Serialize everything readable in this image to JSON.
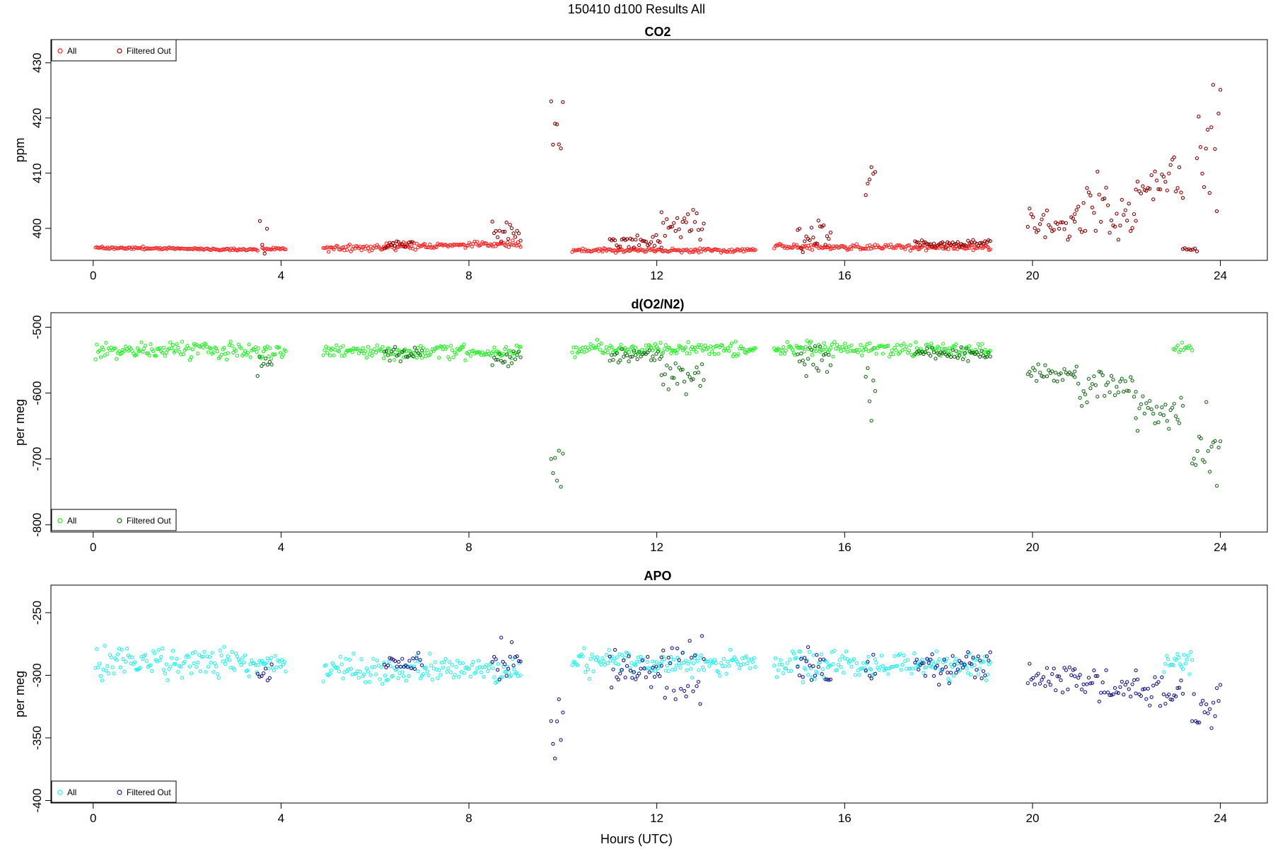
{
  "figure": {
    "title": "150410   d100   Results All",
    "xlabel": "Hours (UTC)"
  },
  "chart_data": [
    {
      "type": "scatter",
      "title": "CO2",
      "ylabel": "ppm",
      "xlim": [
        -0.9,
        25.0
      ],
      "ylim": [
        394.2,
        434.2
      ],
      "xticks": [
        0,
        4,
        8,
        12,
        16,
        20,
        24
      ],
      "yticks": [
        400,
        410,
        420,
        430
      ],
      "legend": {
        "position": "top-left",
        "entries": [
          "All",
          "Filtered Out"
        ]
      },
      "colors": {
        "all": "#ff2020",
        "filtered": "#8b0000"
      },
      "series": [
        {
          "name": "All",
          "segments": [
            {
              "x0": 0.05,
              "x1": 3.5,
              "base": 396.5,
              "slope": -0.1,
              "noise": 0.2
            },
            {
              "x0": 3.6,
              "x1": 4.1,
              "base": 396.3,
              "slope": 0,
              "noise": 0.2
            },
            {
              "x0": 4.9,
              "x1": 9.1,
              "base": 396.4,
              "slope": 0.2,
              "noise": 0.5
            },
            {
              "x0": 10.2,
              "x1": 14.1,
              "base": 396.0,
              "slope": 0,
              "noise": 0.3
            },
            {
              "x0": 14.5,
              "x1": 19.1,
              "base": 396.6,
              "slope": 0,
              "noise": 0.4
            }
          ]
        },
        {
          "name": "Filtered Out",
          "segments": [
            {
              "x0": 3.55,
              "x1": 3.7,
              "base": 400,
              "slope": 0,
              "noise": 3.5
            },
            {
              "x0": 6.2,
              "x1": 6.8,
              "base": 397.2,
              "slope": 0,
              "noise": 1.0
            },
            {
              "x0": 8.5,
              "x1": 9.1,
              "base": 398.8,
              "slope": 0,
              "noise": 1.6
            },
            {
              "x0": 9.75,
              "x1": 10.0,
              "base": 418,
              "slope": 0,
              "noise": 8
            },
            {
              "x0": 11.0,
              "x1": 12.1,
              "base": 397.5,
              "slope": 0,
              "noise": 1.0
            },
            {
              "x0": 12.1,
              "x1": 13.0,
              "base": 401.5,
              "slope": 0,
              "noise": 2.8
            },
            {
              "x0": 15.0,
              "x1": 15.7,
              "base": 399,
              "slope": 0,
              "noise": 3.0
            },
            {
              "x0": 16.45,
              "x1": 16.65,
              "base": 407,
              "slope": 0,
              "noise": 6
            },
            {
              "x0": 17.5,
              "x1": 19.1,
              "base": 397.2,
              "slope": 0,
              "noise": 0.6
            },
            {
              "x0": 19.9,
              "x1": 20.9,
              "base": 400.5,
              "slope": 0,
              "noise": 2.0
            },
            {
              "x0": 20.9,
              "x1": 22.2,
              "base": 403.5,
              "slope": 0,
              "noise": 4.5
            },
            {
              "x0": 22.2,
              "x1": 23.2,
              "base": 408.5,
              "slope": 0,
              "noise": 3.0
            },
            {
              "x0": 23.2,
              "x1": 23.5,
              "base": 396.2,
              "slope": 0,
              "noise": 0.3
            },
            {
              "x0": 23.5,
              "x1": 24.0,
              "base": 415,
              "slope": 0,
              "noise": 8
            }
          ]
        }
      ]
    },
    {
      "type": "scatter",
      "title": "d(O2/N2)",
      "ylabel": "per meg",
      "xlim": [
        -0.9,
        25.0
      ],
      "ylim": [
        -811,
        -478
      ],
      "xticks": [
        0,
        4,
        8,
        12,
        16,
        20,
        24
      ],
      "yticks": [
        -500,
        -600,
        -700,
        -800
      ],
      "legend": {
        "position": "bottom-left",
        "entries": [
          "All",
          "Filtered Out"
        ]
      },
      "colors": {
        "all": "#22ee22",
        "filtered": "#1a6b1a"
      },
      "series": [
        {
          "name": "All",
          "segments": [
            {
              "x0": 0.05,
              "x1": 4.1,
              "base": -535,
              "slope": 0,
              "noise": 10
            },
            {
              "x0": 4.9,
              "x1": 9.1,
              "base": -537,
              "slope": 0,
              "noise": 8
            },
            {
              "x0": 10.2,
              "x1": 14.1,
              "base": -533,
              "slope": 0,
              "noise": 8
            },
            {
              "x0": 14.5,
              "x1": 19.1,
              "base": -533,
              "slope": 0,
              "noise": 9
            },
            {
              "x0": 23.0,
              "x1": 23.4,
              "base": -530,
              "slope": 0,
              "noise": 6
            }
          ]
        },
        {
          "name": "Filtered Out",
          "segments": [
            {
              "x0": 3.5,
              "x1": 3.8,
              "base": -555,
              "slope": 0,
              "noise": 18
            },
            {
              "x0": 6.2,
              "x1": 7.0,
              "base": -540,
              "slope": 0,
              "noise": 8
            },
            {
              "x0": 8.5,
              "x1": 9.1,
              "base": -548,
              "slope": 0,
              "noise": 12
            },
            {
              "x0": 9.75,
              "x1": 10.0,
              "base": -720,
              "slope": 0,
              "noise": 45
            },
            {
              "x0": 11.0,
              "x1": 12.1,
              "base": -545,
              "slope": 0,
              "noise": 10
            },
            {
              "x0": 12.1,
              "x1": 13.0,
              "base": -575,
              "slope": 0,
              "noise": 20
            },
            {
              "x0": 15.0,
              "x1": 15.7,
              "base": -555,
              "slope": 0,
              "noise": 25
            },
            {
              "x0": 16.45,
              "x1": 16.65,
              "base": -600,
              "slope": 0,
              "noise": 45
            },
            {
              "x0": 17.5,
              "x1": 19.1,
              "base": -540,
              "slope": 0,
              "noise": 8
            },
            {
              "x0": 19.9,
              "x1": 20.9,
              "base": -573,
              "slope": 0,
              "noise": 10
            },
            {
              "x0": 20.9,
              "x1": 22.2,
              "base": -590,
              "slope": 0,
              "noise": 25
            },
            {
              "x0": 22.2,
              "x1": 23.2,
              "base": -625,
              "slope": 0,
              "noise": 22
            },
            {
              "x0": 23.4,
              "x1": 24.0,
              "base": -680,
              "slope": 0,
              "noise": 50
            }
          ]
        }
      ]
    },
    {
      "type": "scatter",
      "title": "APO",
      "ylabel": "per meg",
      "xlim": [
        -0.9,
        25.0
      ],
      "ylim": [
        -402,
        -228
      ],
      "xticks": [
        0,
        4,
        8,
        12,
        16,
        20,
        24
      ],
      "yticks": [
        -250,
        -300,
        -350,
        -400
      ],
      "legend": {
        "position": "bottom-left",
        "entries": [
          "All",
          "Filtered Out"
        ]
      },
      "colors": {
        "all": "#22eeee",
        "filtered": "#1a1a8b"
      },
      "series": [
        {
          "name": "All",
          "segments": [
            {
              "x0": 0.05,
              "x1": 4.1,
              "base": -290,
              "slope": 0,
              "noise": 10
            },
            {
              "x0": 4.9,
              "x1": 9.1,
              "base": -295,
              "slope": 0,
              "noise": 8
            },
            {
              "x0": 10.2,
              "x1": 14.1,
              "base": -290,
              "slope": 0,
              "noise": 8
            },
            {
              "x0": 14.5,
              "x1": 19.1,
              "base": -292,
              "slope": 0,
              "noise": 9
            },
            {
              "x0": 22.8,
              "x1": 23.4,
              "base": -290,
              "slope": 0,
              "noise": 8
            }
          ]
        },
        {
          "name": "Filtered Out",
          "segments": [
            {
              "x0": 3.5,
              "x1": 3.8,
              "base": -298,
              "slope": 0,
              "noise": 8
            },
            {
              "x0": 6.2,
              "x1": 7.0,
              "base": -290,
              "slope": 0,
              "noise": 8
            },
            {
              "x0": 8.5,
              "x1": 9.1,
              "base": -290,
              "slope": 0,
              "noise": 14
            },
            {
              "x0": 9.75,
              "x1": 10.0,
              "base": -345,
              "slope": 0,
              "noise": 25
            },
            {
              "x0": 11.0,
              "x1": 12.1,
              "base": -295,
              "slope": 0,
              "noise": 12
            },
            {
              "x0": 12.1,
              "x1": 13.0,
              "base": -295,
              "slope": 0,
              "noise": 25
            },
            {
              "x0": 15.0,
              "x1": 15.7,
              "base": -295,
              "slope": 0,
              "noise": 14
            },
            {
              "x0": 16.45,
              "x1": 16.65,
              "base": -305,
              "slope": 0,
              "noise": 25
            },
            {
              "x0": 17.5,
              "x1": 19.1,
              "base": -290,
              "slope": 0,
              "noise": 12
            },
            {
              "x0": 19.9,
              "x1": 20.9,
              "base": -300,
              "slope": 0,
              "noise": 10
            },
            {
              "x0": 20.9,
              "x1": 22.2,
              "base": -308,
              "slope": 0,
              "noise": 12
            },
            {
              "x0": 22.2,
              "x1": 23.2,
              "base": -310,
              "slope": 0,
              "noise": 12
            },
            {
              "x0": 23.4,
              "x1": 24.0,
              "base": -325,
              "slope": 0,
              "noise": 22
            }
          ]
        }
      ]
    }
  ]
}
